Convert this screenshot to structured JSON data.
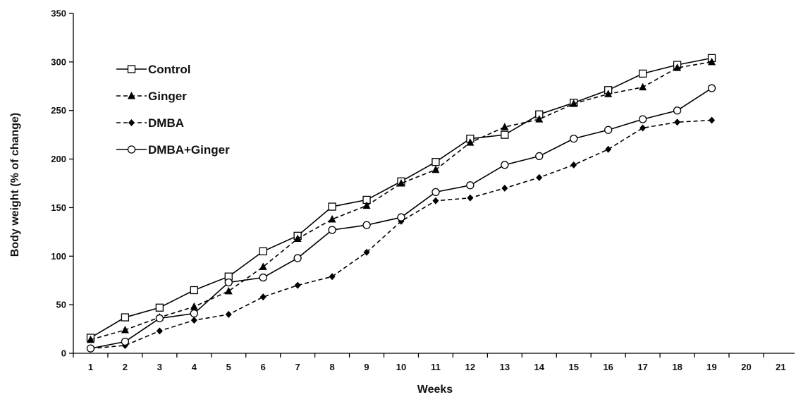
{
  "chart_data": {
    "type": "line",
    "xlabel": "Weeks",
    "ylabel": "Body weight (% of change)",
    "xlim": [
      0.5,
      21.4
    ],
    "ylim": [
      0,
      350
    ],
    "y_ticks": [
      0,
      50,
      100,
      150,
      200,
      250,
      300,
      350
    ],
    "x_ticks": [
      1,
      2,
      3,
      4,
      5,
      6,
      7,
      8,
      9,
      10,
      11,
      12,
      13,
      14,
      15,
      16,
      17,
      18,
      19,
      20,
      21
    ],
    "grid": false,
    "legend_position": "top-left",
    "x": [
      1,
      2,
      3,
      4,
      5,
      6,
      7,
      8,
      9,
      10,
      11,
      12,
      13,
      14,
      15,
      16,
      17,
      18,
      19
    ],
    "series": [
      {
        "name": "Control",
        "line": "solid",
        "marker": "open-square",
        "values": [
          16,
          37,
          47,
          65,
          79,
          105,
          121,
          151,
          158,
          177,
          197,
          221,
          225,
          246,
          258,
          271,
          288,
          297,
          304
        ]
      },
      {
        "name": "Ginger",
        "line": "dashed",
        "marker": "filled-triangle",
        "values": [
          14,
          24,
          37,
          48,
          64,
          89,
          118,
          138,
          152,
          175,
          189,
          217,
          233,
          241,
          257,
          267,
          274,
          294,
          300
        ]
      },
      {
        "name": "DMBA",
        "line": "dashed",
        "marker": "filled-diamond",
        "values": [
          5,
          8,
          23,
          34,
          40,
          58,
          70,
          79,
          104,
          136,
          157,
          160,
          170,
          181,
          194,
          210,
          232,
          238,
          240
        ]
      },
      {
        "name": "DMBA+Ginger",
        "line": "solid",
        "marker": "open-circle",
        "values": [
          5,
          12,
          36,
          41,
          73,
          78,
          98,
          127,
          132,
          140,
          166,
          173,
          194,
          203,
          221,
          230,
          241,
          250,
          273
        ]
      }
    ]
  }
}
